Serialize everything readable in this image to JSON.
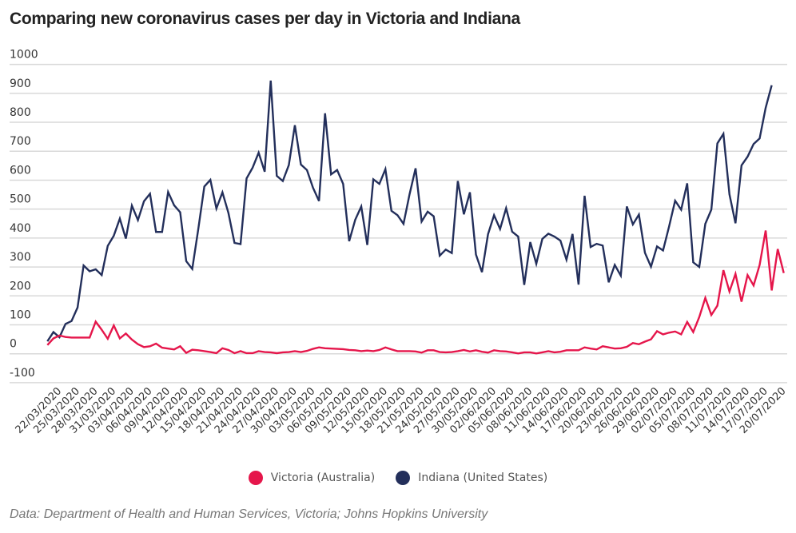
{
  "chart_data": {
    "type": "line",
    "title": "Comparing new coronavirus cases per day in Victoria and Indiana",
    "xlabel": "",
    "ylabel": "",
    "ylim": [
      -100,
      1000
    ],
    "yticks": [
      -100,
      0,
      100,
      200,
      300,
      400,
      500,
      600,
      700,
      800,
      900,
      1000
    ],
    "grid": "horizontal",
    "legend_position": "bottom-center",
    "x": [
      "20/03/2020",
      "21/03/2020",
      "22/03/2020",
      "23/03/2020",
      "24/03/2020",
      "25/03/2020",
      "26/03/2020",
      "27/03/2020",
      "28/03/2020",
      "29/03/2020",
      "30/03/2020",
      "31/03/2020",
      "01/04/2020",
      "02/04/2020",
      "03/04/2020",
      "04/04/2020",
      "05/04/2020",
      "06/04/2020",
      "07/04/2020",
      "08/04/2020",
      "09/04/2020",
      "10/04/2020",
      "11/04/2020",
      "12/04/2020",
      "13/04/2020",
      "14/04/2020",
      "15/04/2020",
      "16/04/2020",
      "17/04/2020",
      "18/04/2020",
      "19/04/2020",
      "20/04/2020",
      "21/04/2020",
      "22/04/2020",
      "23/04/2020",
      "24/04/2020",
      "25/04/2020",
      "26/04/2020",
      "27/04/2020",
      "28/04/2020",
      "29/04/2020",
      "30/04/2020",
      "01/05/2020",
      "02/05/2020",
      "03/05/2020",
      "04/05/2020",
      "05/05/2020",
      "06/05/2020",
      "07/05/2020",
      "08/05/2020",
      "09/05/2020",
      "10/05/2020",
      "11/05/2020",
      "12/05/2020",
      "13/05/2020",
      "14/05/2020",
      "15/05/2020",
      "16/05/2020",
      "17/05/2020",
      "18/05/2020",
      "19/05/2020",
      "20/05/2020",
      "21/05/2020",
      "22/05/2020",
      "23/05/2020",
      "24/05/2020",
      "25/05/2020",
      "26/05/2020",
      "27/05/2020",
      "28/05/2020",
      "29/05/2020",
      "30/05/2020",
      "31/05/2020",
      "01/06/2020",
      "02/06/2020",
      "03/06/2020",
      "04/06/2020",
      "05/06/2020",
      "06/06/2020",
      "07/06/2020",
      "08/06/2020",
      "09/06/2020",
      "10/06/2020",
      "11/06/2020",
      "12/06/2020",
      "13/06/2020",
      "14/06/2020",
      "15/06/2020",
      "16/06/2020",
      "17/06/2020",
      "18/06/2020",
      "19/06/2020",
      "20/06/2020",
      "21/06/2020",
      "22/06/2020",
      "23/06/2020",
      "24/06/2020",
      "25/06/2020",
      "26/06/2020",
      "27/06/2020",
      "28/06/2020",
      "29/06/2020",
      "30/06/2020",
      "01/07/2020",
      "02/07/2020",
      "03/07/2020",
      "04/07/2020",
      "05/07/2020",
      "06/07/2020",
      "07/07/2020",
      "08/07/2020",
      "09/07/2020",
      "10/07/2020",
      "11/07/2020",
      "12/07/2020",
      "13/07/2020",
      "14/07/2020",
      "15/07/2020",
      "16/07/2020",
      "17/07/2020",
      "18/07/2020",
      "19/07/2020",
      "20/07/2020"
    ],
    "xtick_labels": [
      "22/03/2020",
      "25/03/2020",
      "28/03/2020",
      "31/03/2020",
      "03/04/2020",
      "06/04/2020",
      "09/04/2020",
      "12/04/2020",
      "15/04/2020",
      "18/04/2020",
      "21/04/2020",
      "24/04/2020",
      "27/04/2020",
      "30/04/2020",
      "03/05/2020",
      "06/05/2020",
      "09/05/2020",
      "12/05/2020",
      "15/05/2020",
      "18/05/2020",
      "21/05/2020",
      "24/05/2020",
      "27/05/2020",
      "30/05/2020",
      "02/06/2020",
      "05/06/2020",
      "08/06/2020",
      "11/06/2020",
      "14/06/2020",
      "17/06/2020",
      "20/06/2020",
      "23/06/2020",
      "26/06/2020",
      "29/06/2020",
      "02/07/2020",
      "05/07/2020",
      "08/07/2020",
      "11/07/2020",
      "14/07/2020",
      "17/07/2020",
      "20/07/2020"
    ],
    "series": [
      {
        "name": "Victoria (Australia)",
        "color": "#e5164b",
        "values": [
          30,
          53,
          63,
          58,
          56,
          56,
          56,
          56,
          111,
          83,
          52,
          98,
          53,
          70,
          49,
          33,
          23,
          26,
          35,
          21,
          18,
          15,
          26,
          3,
          14,
          12,
          9,
          6,
          2,
          19,
          13,
          2,
          9,
          2,
          2,
          9,
          6,
          5,
          2,
          5,
          6,
          9,
          6,
          10,
          17,
          22,
          19,
          18,
          17,
          16,
          13,
          12,
          9,
          11,
          9,
          13,
          22,
          15,
          9,
          9,
          9,
          8,
          4,
          12,
          12,
          6,
          5,
          6,
          9,
          13,
          8,
          12,
          7,
          4,
          12,
          9,
          8,
          5,
          1,
          5,
          5,
          1,
          5,
          9,
          5,
          7,
          12,
          12,
          12,
          22,
          18,
          15,
          26,
          22,
          18,
          19,
          24,
          37,
          33,
          42,
          50,
          78,
          67,
          73,
          77,
          67,
          110,
          75,
          127,
          193,
          134,
          166,
          289,
          215,
          276,
          180,
          272,
          236,
          307,
          426,
          219,
          362,
          279
        ]
      },
      {
        "name": "Indiana (United States)",
        "color": "#232f5b",
        "values": [
          43,
          75,
          57,
          103,
          113,
          160,
          305,
          285,
          292,
          272,
          373,
          408,
          467,
          398,
          512,
          462,
          527,
          553,
          421,
          421,
          559,
          513,
          489,
          320,
          293,
          431,
          578,
          601,
          502,
          558,
          486,
          383,
          379,
          606,
          643,
          695,
          629,
          944,
          615,
          597,
          652,
          790,
          654,
          635,
          574,
          528,
          831,
          620,
          635,
          587,
          389,
          463,
          509,
          376,
          603,
          587,
          638,
          494,
          479,
          449,
          551,
          641,
          457,
          491,
          475,
          339,
          360,
          348,
          597,
          482,
          558,
          343,
          282,
          413,
          479,
          431,
          503,
          422,
          405,
          238,
          386,
          311,
          397,
          415,
          405,
          391,
          325,
          414,
          239,
          546,
          369,
          380,
          374,
          247,
          307,
          270,
          509,
          447,
          481,
          349,
          301,
          371,
          357,
          440,
          529,
          498,
          589,
          316,
          300,
          449,
          498,
          727,
          760,
          551,
          451,
          651,
          681,
          725,
          744,
          850,
          928,
          null,
          null
        ]
      }
    ]
  },
  "legend": {
    "items": [
      {
        "label": "Victoria (Australia)",
        "color": "#e5164b"
      },
      {
        "label": "Indiana (United States)",
        "color": "#232f5b"
      }
    ]
  },
  "source": "Data: Department of Health and Human Services, Victoria; Johns Hopkins University"
}
